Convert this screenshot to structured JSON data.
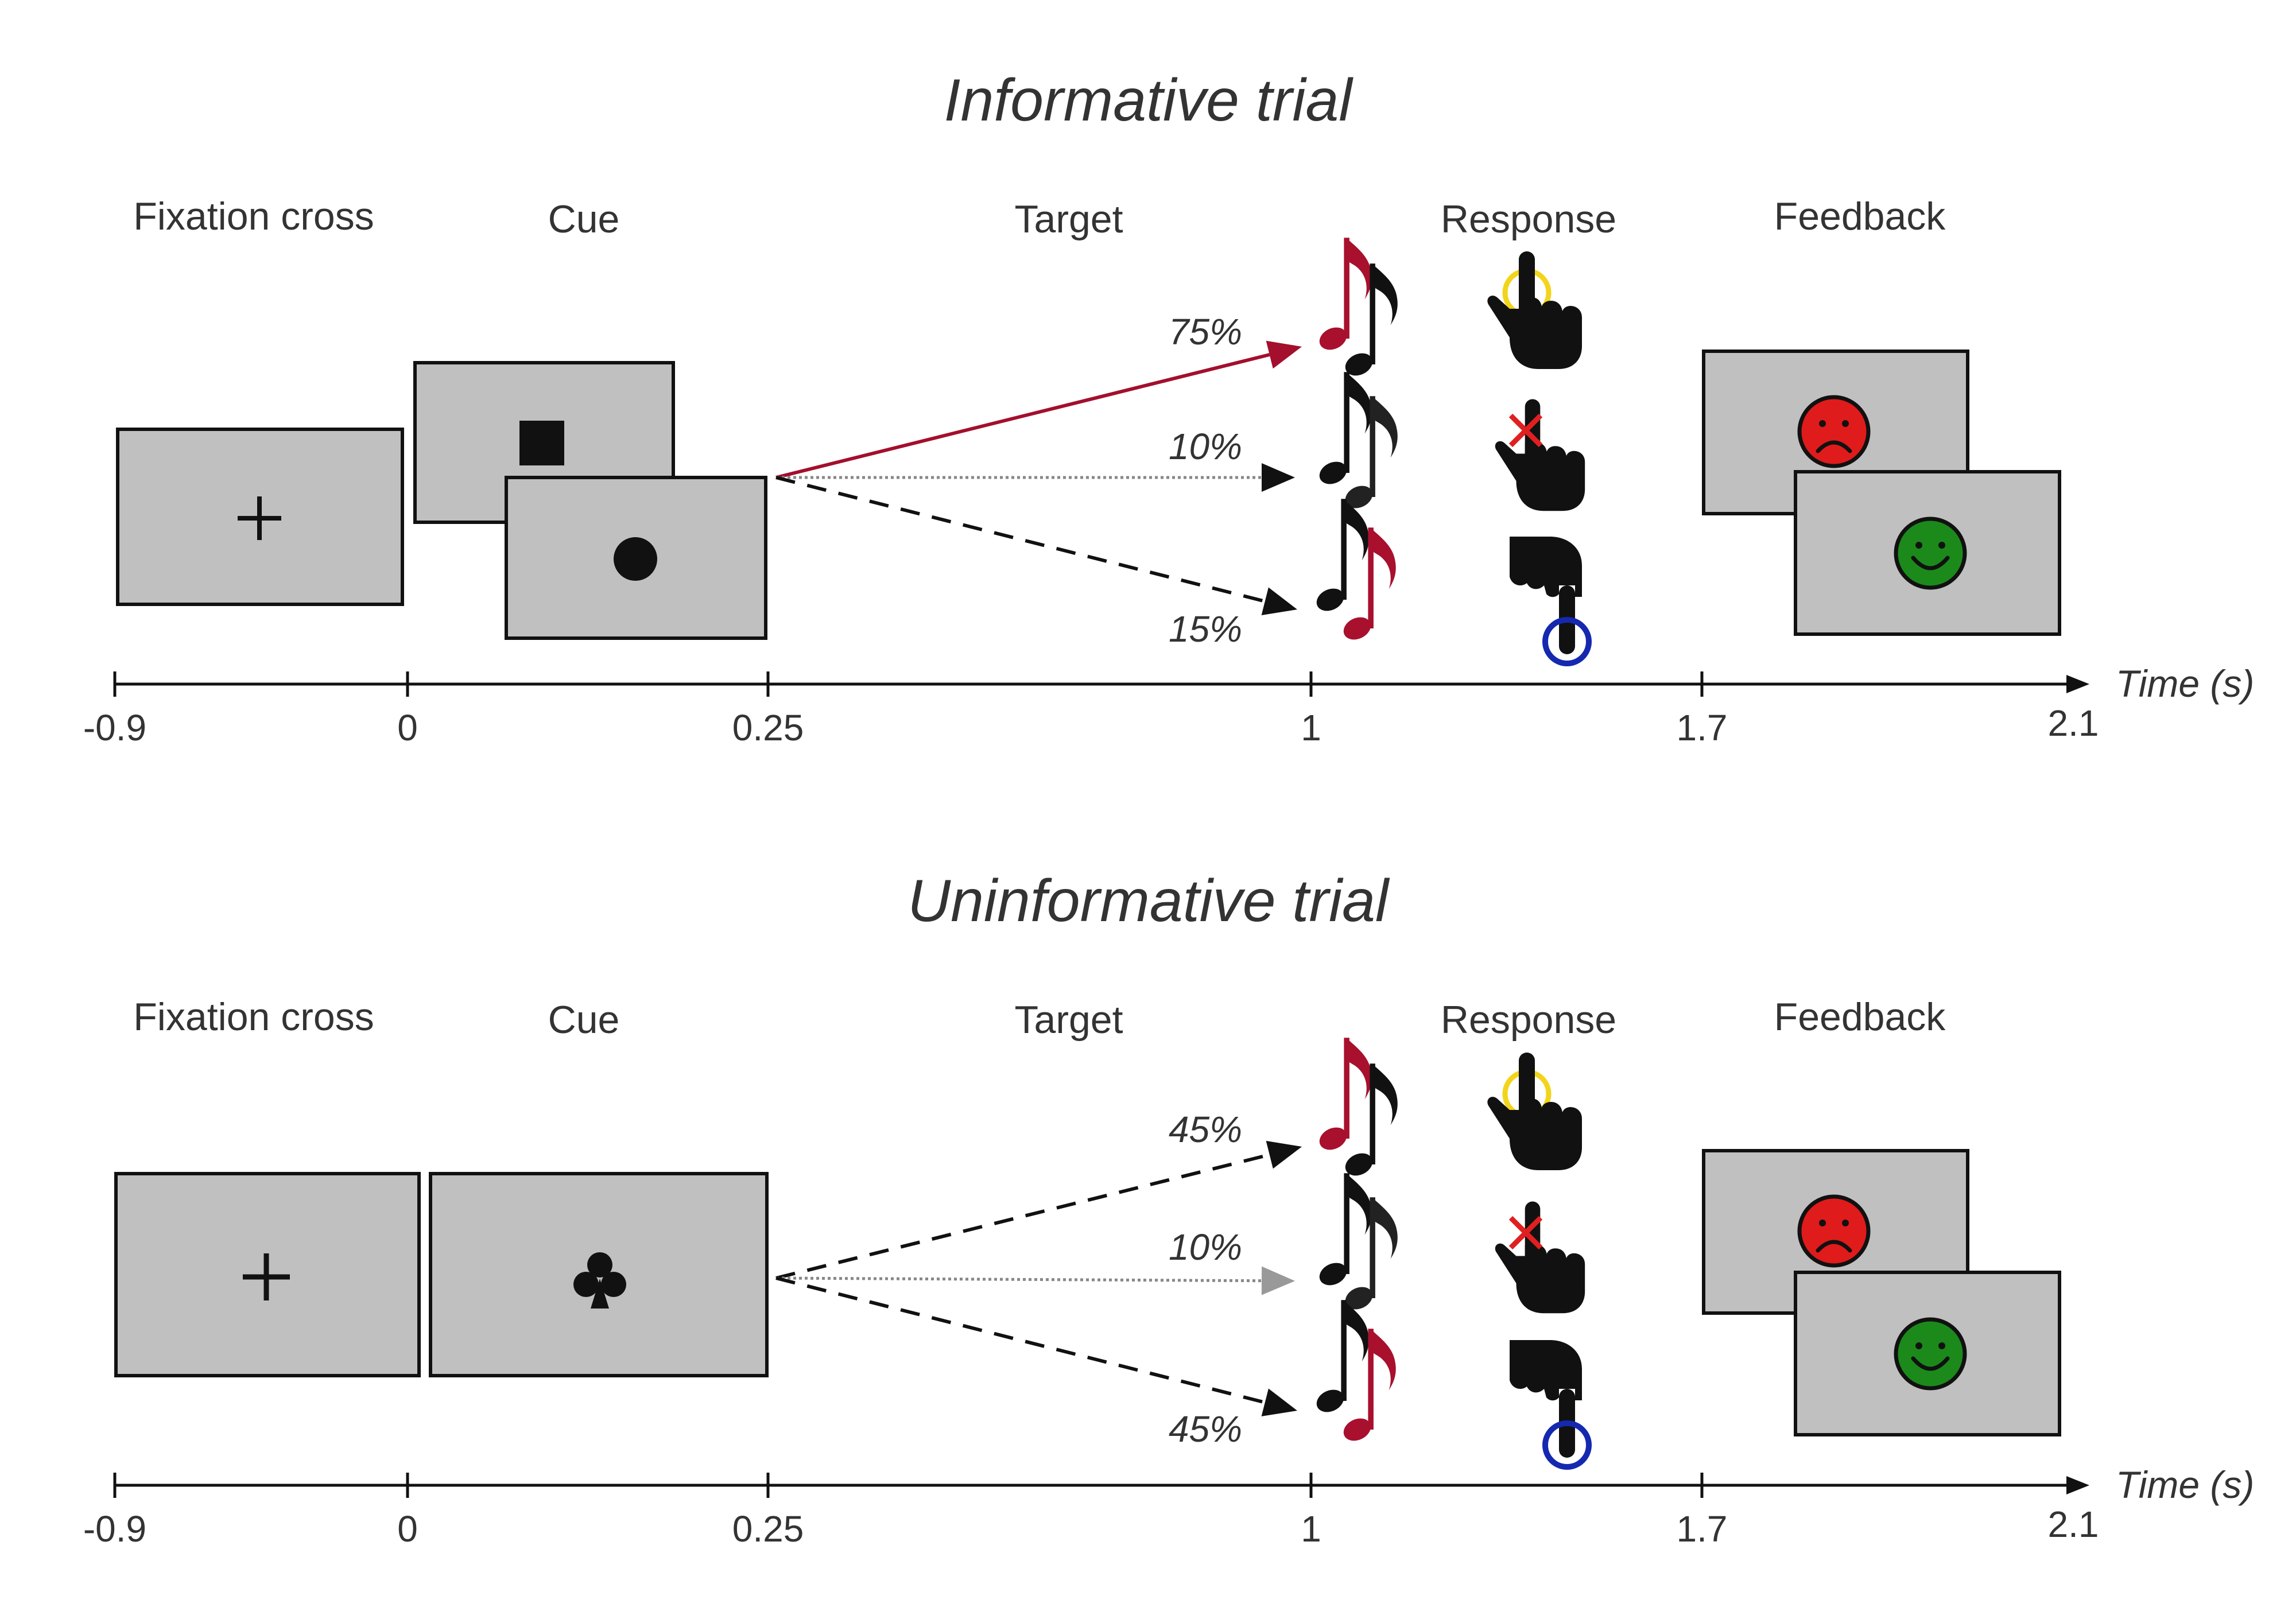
{
  "colors": {
    "screen_fill": "#c0c0c0",
    "informative_arrow": "#a30f2d",
    "note_red": "#a8102e",
    "note_black": "#111111",
    "sad_face": "#e01b1b",
    "happy_face": "#1b8a1b",
    "touch_ring_yellow": "#f2d51a",
    "touch_ring_blue": "#1528b0",
    "cross_red": "#e02020",
    "dotted_gray": "#888888"
  },
  "panels": [
    {
      "title": "Informative trial",
      "stages": [
        "Fixation cross",
        "Cue",
        "Target",
        "Response",
        "Feedback"
      ],
      "cue_icons": [
        "square-icon",
        "circle-icon"
      ],
      "outcomes": [
        {
          "probability": "75%",
          "line": "solid",
          "color": "#a30f2d",
          "notes": "red-black"
        },
        {
          "probability": "10%",
          "line": "dotted",
          "color": "#888888",
          "notes": "black-black"
        },
        {
          "probability": "15%",
          "line": "dashed",
          "color": "#111111",
          "notes": "black-red"
        }
      ],
      "response_icons": [
        "touch-yellow-icon",
        "touch-cross-icon",
        "touch-blue-icon"
      ],
      "feedback_icons": [
        "sad-face-icon",
        "happy-face-icon"
      ],
      "axis": {
        "ticks": [
          "-0.9",
          "0",
          "0.25",
          "1",
          "1.7",
          "2.1"
        ],
        "label": "Time (s)"
      }
    },
    {
      "title": "Uninformative trial",
      "stages": [
        "Fixation cross",
        "Cue",
        "Target",
        "Response",
        "Feedback"
      ],
      "cue_icons": [
        "club-icon"
      ],
      "outcomes": [
        {
          "probability": "45%",
          "line": "dashed",
          "color": "#111111",
          "notes": "red-black"
        },
        {
          "probability": "10%",
          "line": "dotted",
          "color": "#888888",
          "notes": "black-black"
        },
        {
          "probability": "45%",
          "line": "dashed",
          "color": "#111111",
          "notes": "black-red"
        }
      ],
      "response_icons": [
        "touch-yellow-icon",
        "touch-cross-icon",
        "touch-blue-icon"
      ],
      "feedback_icons": [
        "sad-face-icon",
        "happy-face-icon"
      ],
      "axis": {
        "ticks": [
          "-0.9",
          "0",
          "0.25",
          "1",
          "1.7",
          "2.1"
        ],
        "label": "Time (s)"
      }
    }
  ]
}
